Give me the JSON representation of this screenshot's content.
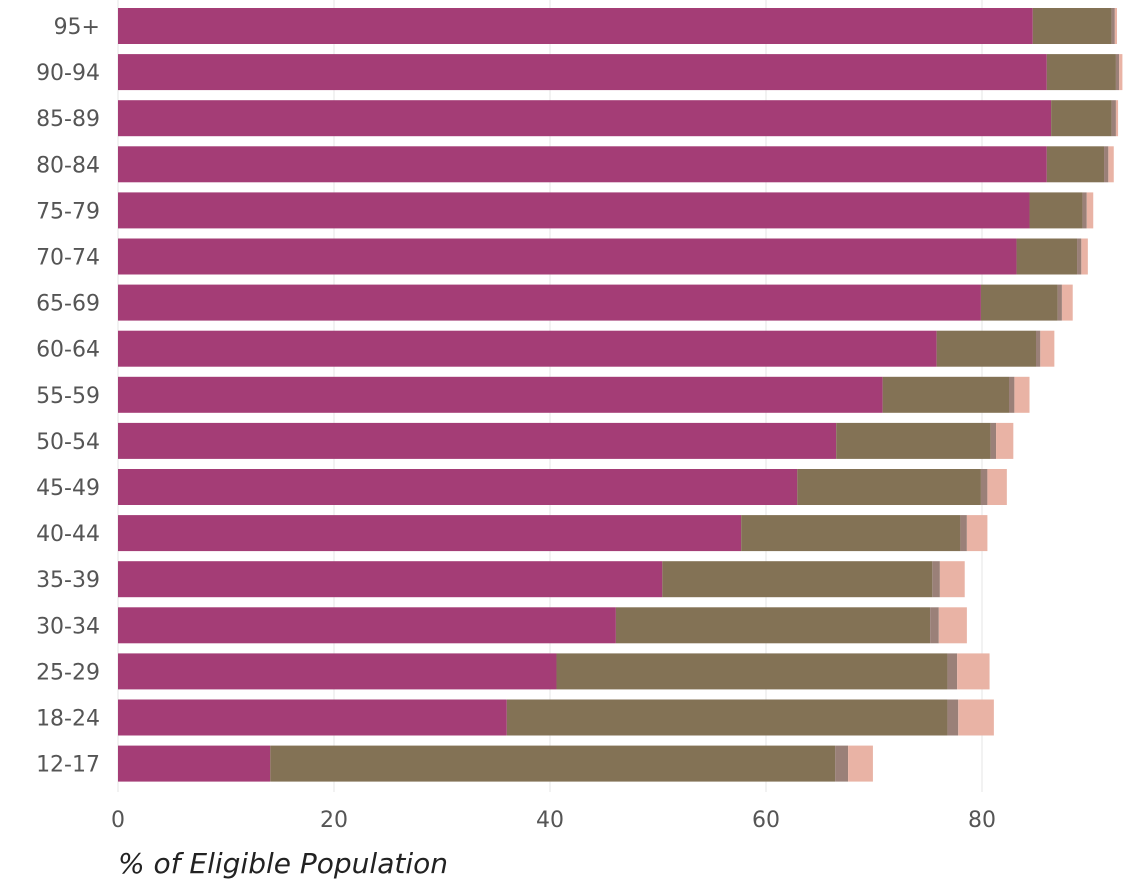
{
  "chart_data": {
    "type": "bar",
    "orientation": "horizontal",
    "stacked": true,
    "title": "",
    "xlabel": "% of Eligible Population",
    "ylabel": "",
    "xlim": [
      0,
      93
    ],
    "xticks": [
      0,
      20,
      40,
      60,
      80
    ],
    "grid": true,
    "legend": "none",
    "categories": [
      "95+",
      "90-94",
      "85-89",
      "80-84",
      "75-79",
      "70-74",
      "65-69",
      "60-64",
      "55-59",
      "50-54",
      "45-49",
      "40-44",
      "35-39",
      "30-34",
      "25-29",
      "18-24",
      "12-17"
    ],
    "series": [
      {
        "color": "#a43d76",
        "values": [
          84.7,
          86.0,
          86.4,
          86.0,
          84.4,
          83.2,
          79.9,
          75.8,
          70.8,
          66.5,
          62.9,
          57.7,
          50.4,
          46.1,
          40.6,
          36.0,
          14.1
        ]
      },
      {
        "color": "#837255",
        "values": [
          7.3,
          6.4,
          5.6,
          5.3,
          4.9,
          5.6,
          7.1,
          9.2,
          11.7,
          14.3,
          17.0,
          20.3,
          25.0,
          29.1,
          36.2,
          40.8,
          52.3
        ]
      },
      {
        "color": "#9a8078",
        "values": [
          0.3,
          0.3,
          0.4,
          0.4,
          0.4,
          0.4,
          0.4,
          0.4,
          0.5,
          0.5,
          0.6,
          0.6,
          0.7,
          0.8,
          0.9,
          1.0,
          1.2
        ]
      },
      {
        "color": "#e9b3a5",
        "values": [
          0.2,
          0.3,
          0.2,
          0.5,
          0.6,
          0.6,
          1.0,
          1.3,
          1.4,
          1.6,
          1.8,
          1.9,
          2.3,
          2.6,
          3.0,
          3.3,
          2.3
        ]
      }
    ]
  }
}
